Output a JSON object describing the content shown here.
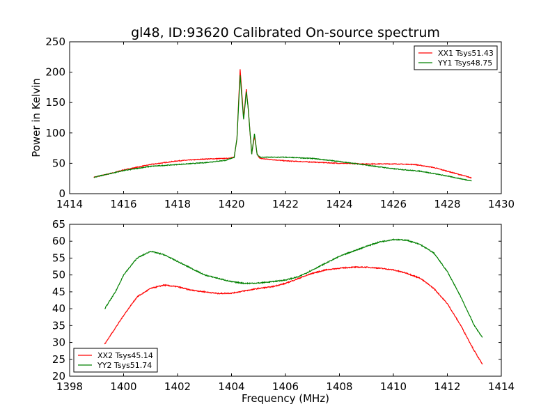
{
  "chart_data": [
    {
      "type": "line",
      "title": "gl48, ID:93620 Calibrated On-source spectrum",
      "xlabel": "",
      "ylabel": "Power in Kelvin",
      "xlim": [
        1414,
        1430
      ],
      "ylim": [
        0,
        250
      ],
      "xticks": [
        "1414",
        "1416",
        "1418",
        "1420",
        "1422",
        "1424",
        "1426",
        "1428",
        "1430"
      ],
      "yticks": [
        "0",
        "50",
        "100",
        "150",
        "200",
        "250"
      ],
      "legend_position": "top-right",
      "series": [
        {
          "name": "XX1 Tsys51.43",
          "color": "#ff0000",
          "x": [
            1414.9,
            1415.5,
            1416,
            1417,
            1418,
            1419,
            1419.8,
            1420.1,
            1420.2,
            1420.32,
            1420.45,
            1420.55,
            1420.62,
            1420.75,
            1420.85,
            1420.95,
            1421.05,
            1422,
            1423,
            1424,
            1425,
            1426,
            1426.8,
            1427.5,
            1428,
            1428.9
          ],
          "y": [
            27,
            33,
            39,
            48,
            54,
            57,
            58,
            60,
            90,
            205,
            125,
            172,
            140,
            65,
            95,
            65,
            58,
            54,
            52,
            50,
            49,
            49,
            48,
            43,
            37,
            26
          ]
        },
        {
          "name": "YY1 Tsys48.75",
          "color": "#008000",
          "x": [
            1414.9,
            1415.5,
            1416,
            1417,
            1418,
            1419,
            1419.8,
            1420.1,
            1420.2,
            1420.32,
            1420.45,
            1420.55,
            1420.62,
            1420.75,
            1420.85,
            1420.95,
            1421.05,
            1422,
            1423,
            1424,
            1425,
            1426,
            1427,
            1428,
            1428.9
          ],
          "y": [
            27,
            33,
            38,
            45,
            48,
            51,
            55,
            60,
            90,
            195,
            122,
            168,
            140,
            65,
            99,
            65,
            60,
            60,
            58,
            53,
            47,
            41,
            37,
            29,
            21
          ]
        }
      ]
    },
    {
      "type": "line",
      "title": "",
      "xlabel": "Frequency (MHz)",
      "ylabel": "",
      "xlim": [
        1398,
        1414
      ],
      "ylim": [
        20,
        65
      ],
      "xticks": [
        "1398",
        "1400",
        "1402",
        "1404",
        "1406",
        "1408",
        "1410",
        "1412",
        "1414"
      ],
      "yticks": [
        "20",
        "25",
        "30",
        "35",
        "40",
        "45",
        "50",
        "55",
        "60",
        "65"
      ],
      "legend_position": "bottom-left",
      "series": [
        {
          "name": "XX2 Tsys45.14",
          "color": "#ff0000",
          "x": [
            1399.3,
            1400,
            1400.5,
            1401,
            1401.5,
            1402,
            1402.5,
            1403,
            1403.5,
            1404,
            1404.5,
            1405,
            1405.5,
            1406,
            1406.5,
            1407,
            1407.5,
            1408,
            1408.5,
            1409,
            1409.5,
            1410,
            1410.5,
            1411,
            1411.5,
            1412,
            1412.5,
            1413,
            1413.3
          ],
          "y": [
            29.5,
            38,
            43.5,
            46,
            47,
            46.5,
            45.5,
            45,
            44.5,
            44.6,
            45.3,
            46,
            46.5,
            47.5,
            49,
            50.5,
            51.5,
            52,
            52.3,
            52.3,
            52,
            51.5,
            50.5,
            49,
            46,
            41.5,
            35,
            27.5,
            23.5
          ]
        },
        {
          "name": "YY2 Tsys51.74",
          "color": "#008000",
          "x": [
            1399.3,
            1399.7,
            1400,
            1400.5,
            1401,
            1401.5,
            1402,
            1402.5,
            1403,
            1403.5,
            1404,
            1404.5,
            1405,
            1405.5,
            1406,
            1406.5,
            1407,
            1407.5,
            1408,
            1408.5,
            1409,
            1409.5,
            1410,
            1410.5,
            1411,
            1411.5,
            1412,
            1412.5,
            1413,
            1413.3
          ],
          "y": [
            40,
            45,
            50,
            55,
            57,
            56,
            54,
            52,
            50,
            49,
            48,
            47.5,
            47.6,
            48,
            48.5,
            49.5,
            51.5,
            53.5,
            55.5,
            57,
            58.5,
            59.8,
            60.5,
            60.3,
            59,
            56.5,
            51,
            43.5,
            35,
            31.5
          ]
        }
      ]
    }
  ]
}
